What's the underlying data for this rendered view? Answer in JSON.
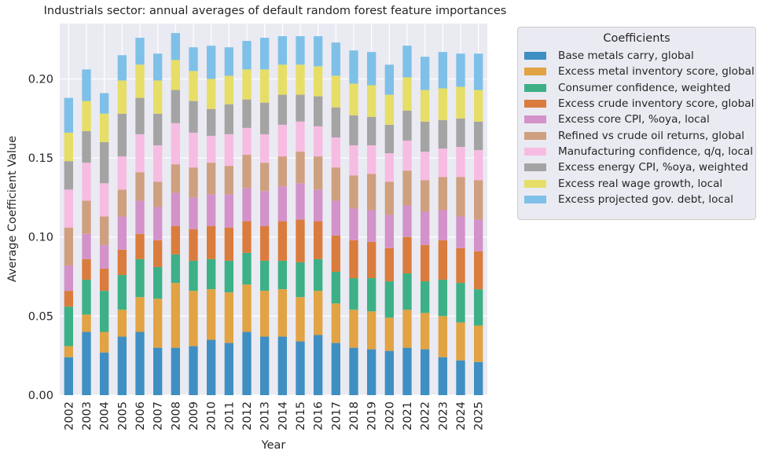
{
  "chart_data": {
    "type": "bar",
    "stacked": true,
    "title": "Industrials sector: annual averages of default random forest feature importances",
    "xlabel": "Year",
    "ylabel": "Average Coefficient Value",
    "ylim": [
      0,
      0.235
    ],
    "yticks": [
      0.0,
      0.05,
      0.1,
      0.15,
      0.2
    ],
    "ytick_labels": [
      "0.00",
      "0.05",
      "0.10",
      "0.15",
      "0.20"
    ],
    "grid": true,
    "legend_title": "Coefficients",
    "legend_position": "outside-right",
    "categories": [
      "2002",
      "2003",
      "2004",
      "2005",
      "2006",
      "2007",
      "2008",
      "2009",
      "2010",
      "2011",
      "2012",
      "2013",
      "2014",
      "2015",
      "2016",
      "2017",
      "2018",
      "2019",
      "2020",
      "2021",
      "2022",
      "2023",
      "2024",
      "2025"
    ],
    "series": [
      {
        "name": "Base metals carry, global",
        "color": "#3f8fc2",
        "values": [
          0.024,
          0.04,
          0.027,
          0.037,
          0.04,
          0.03,
          0.03,
          0.031,
          0.035,
          0.033,
          0.04,
          0.037,
          0.037,
          0.034,
          0.038,
          0.033,
          0.03,
          0.029,
          0.028,
          0.03,
          0.029,
          0.024,
          0.022,
          0.021
        ]
      },
      {
        "name": "Excess metal inventory score, global",
        "color": "#e1a343",
        "values": [
          0.007,
          0.011,
          0.013,
          0.017,
          0.022,
          0.031,
          0.041,
          0.035,
          0.032,
          0.032,
          0.03,
          0.029,
          0.03,
          0.028,
          0.028,
          0.025,
          0.024,
          0.024,
          0.021,
          0.024,
          0.023,
          0.026,
          0.024,
          0.023
        ]
      },
      {
        "name": "Consumer confidence, weighted",
        "color": "#3db087",
        "values": [
          0.025,
          0.022,
          0.026,
          0.022,
          0.024,
          0.02,
          0.018,
          0.019,
          0.019,
          0.02,
          0.02,
          0.019,
          0.018,
          0.022,
          0.02,
          0.02,
          0.02,
          0.021,
          0.023,
          0.023,
          0.02,
          0.023,
          0.025,
          0.023
        ]
      },
      {
        "name": "Excess crude inventory score, global",
        "color": "#da7c3d",
        "values": [
          0.01,
          0.013,
          0.014,
          0.016,
          0.016,
          0.017,
          0.018,
          0.02,
          0.021,
          0.021,
          0.02,
          0.022,
          0.025,
          0.027,
          0.024,
          0.023,
          0.024,
          0.023,
          0.021,
          0.023,
          0.023,
          0.025,
          0.022,
          0.024
        ]
      },
      {
        "name": "Excess core CPI, %oya, local",
        "color": "#d392c9",
        "values": [
          0.016,
          0.016,
          0.015,
          0.021,
          0.021,
          0.021,
          0.021,
          0.02,
          0.02,
          0.021,
          0.021,
          0.022,
          0.022,
          0.023,
          0.02,
          0.022,
          0.02,
          0.02,
          0.021,
          0.02,
          0.021,
          0.019,
          0.02,
          0.02
        ]
      },
      {
        "name": "Refined vs crude oil returns, global",
        "color": "#cfa07f",
        "values": [
          0.024,
          0.021,
          0.018,
          0.017,
          0.018,
          0.016,
          0.018,
          0.019,
          0.02,
          0.018,
          0.021,
          0.018,
          0.019,
          0.02,
          0.021,
          0.021,
          0.021,
          0.023,
          0.021,
          0.022,
          0.02,
          0.021,
          0.025,
          0.025
        ]
      },
      {
        "name": "Manufacturing confidence, q/q, local",
        "color": "#f7bce2",
        "values": [
          0.024,
          0.024,
          0.021,
          0.021,
          0.024,
          0.023,
          0.026,
          0.022,
          0.017,
          0.02,
          0.017,
          0.018,
          0.02,
          0.019,
          0.019,
          0.019,
          0.019,
          0.018,
          0.018,
          0.019,
          0.018,
          0.018,
          0.019,
          0.019
        ]
      },
      {
        "name": "Excess energy CPI, %oya, weighted",
        "color": "#a4a4a4",
        "values": [
          0.018,
          0.02,
          0.026,
          0.027,
          0.023,
          0.02,
          0.021,
          0.02,
          0.017,
          0.019,
          0.018,
          0.02,
          0.019,
          0.017,
          0.019,
          0.019,
          0.019,
          0.018,
          0.018,
          0.019,
          0.019,
          0.018,
          0.018,
          0.018
        ]
      },
      {
        "name": "Excess real wage growth, local",
        "color": "#e6de67",
        "values": [
          0.018,
          0.019,
          0.018,
          0.021,
          0.021,
          0.021,
          0.019,
          0.019,
          0.019,
          0.018,
          0.019,
          0.021,
          0.019,
          0.019,
          0.019,
          0.02,
          0.02,
          0.02,
          0.019,
          0.021,
          0.02,
          0.02,
          0.02,
          0.02
        ]
      },
      {
        "name": "Excess projected gov. debt, local",
        "color": "#7ec0e8",
        "values": [
          0.022,
          0.02,
          0.013,
          0.016,
          0.017,
          0.017,
          0.017,
          0.015,
          0.021,
          0.018,
          0.018,
          0.02,
          0.018,
          0.018,
          0.019,
          0.021,
          0.021,
          0.021,
          0.019,
          0.02,
          0.021,
          0.023,
          0.021,
          0.023
        ]
      }
    ]
  }
}
